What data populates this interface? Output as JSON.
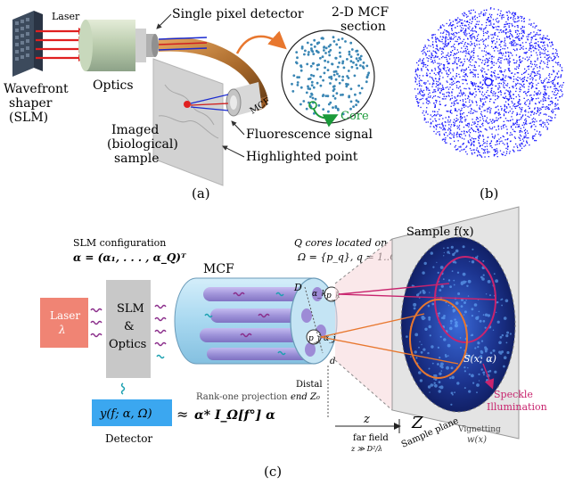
{
  "panel_a": {
    "caption": "(a)",
    "laser": "Laser",
    "wavefront_shaper_line1": "Wavefront",
    "wavefront_shaper_line2": "shaper",
    "wavefront_shaper_line3": "(SLM)",
    "optics": "Optics",
    "single_pixel_detector": "Single pixel detector",
    "mcf_section_line1": "2-D MCF",
    "mcf_section_line2": "section",
    "mcf": "MCF",
    "core": "Core",
    "imaged_line1": "Imaged",
    "imaged_line2": "(biological)",
    "imaged_line3": "sample",
    "fluorescence_signal": "Fluorescence signal",
    "highlighted_point": "Highlighted point"
  },
  "panel_b": {
    "caption": "(b)"
  },
  "panel_c": {
    "caption": "(c)",
    "slm_configuration": "SLM configuration",
    "alpha_def": "α = (α₁, . . . , α_Q)ᵀ",
    "q_cores_line1": "Q cores located on",
    "q_cores_line2": "Ω = {p_q}, q = 1..Q",
    "sample": "Sample f(x)",
    "mcf": "MCF",
    "laser": "Laser",
    "lambda": "λ",
    "slm_line1": "SLM",
    "slm_line2": "&",
    "slm_line3": "Optics",
    "d_upper": "D",
    "d_lower": "d",
    "alpha_k": "α_k",
    "p_k": "p_k",
    "alpha_j": "α_j",
    "p_j": "p_j",
    "s_label": "S(x; α)",
    "speckle_line1": "Speckle",
    "speckle_line2": "Illumination",
    "vignetting_line1": "Vignetting",
    "vignetting_line2": "w(x)",
    "distal_line1": "Distal",
    "distal_line2": "end Z₀",
    "z": "z",
    "far_field": "far field",
    "far_field_cond": "z ≫ D²/λ",
    "z_plane": "Z",
    "sample_plane": "Sample plane",
    "rank_one": "Rank-one projection",
    "detector_box": "y(f; α, Ω)",
    "approx": "≈",
    "projection": "α* I_Ω[f°] α",
    "detector": "Detector"
  },
  "colors": {
    "laser_box": "#f08474",
    "slm_box": "#c8c8c8",
    "detector_box": "#3ba7f0",
    "fiber_fill": "#a8d8f0",
    "fiber_core": "#9d8bd6",
    "purple_wave": "#8a2c8a",
    "teal_wave": "#1aa0b0",
    "magenta": "#c8246e",
    "orange": "#e8772e",
    "speckle_bg": "#1a2f8c",
    "mcf_dots": "#3a86b4",
    "core_green": "#1a9a3a",
    "scatter_blue": "#1a1aff"
  }
}
